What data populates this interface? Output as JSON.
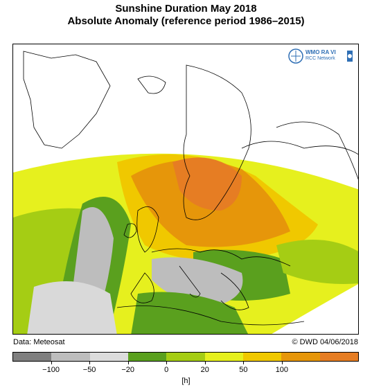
{
  "title": "Sunshine Duration May 2018",
  "subtitle": "Absolute Anomaly (reference period 1986–2015)",
  "logo": {
    "text_top": "WMO RA VI",
    "text_bottom": "RCC Network"
  },
  "credit_left": "Data: Meteosat",
  "credit_right": "© DWD 04/06/2018",
  "colorbar": {
    "unit": "[h]",
    "colors": [
      "#7f7f7f",
      "#bdbdbd",
      "#dcdcdc",
      "#5aa01e",
      "#a5cd14",
      "#e6f01e",
      "#f0c800",
      "#e6960a",
      "#e67d23"
    ],
    "tick_labels": [
      "−100",
      "−50",
      "−20",
      "0",
      "20",
      "50",
      "100"
    ]
  },
  "map_colors": {
    "land_grey": "#bdbdbd",
    "dark_green": "#5aa01e",
    "light_green": "#a5cd14",
    "yellow": "#e6f01e",
    "gold": "#f0c800",
    "orange": "#e6960a",
    "deep_orange": "#e67d23",
    "light_grey": "#d9d9d9"
  }
}
